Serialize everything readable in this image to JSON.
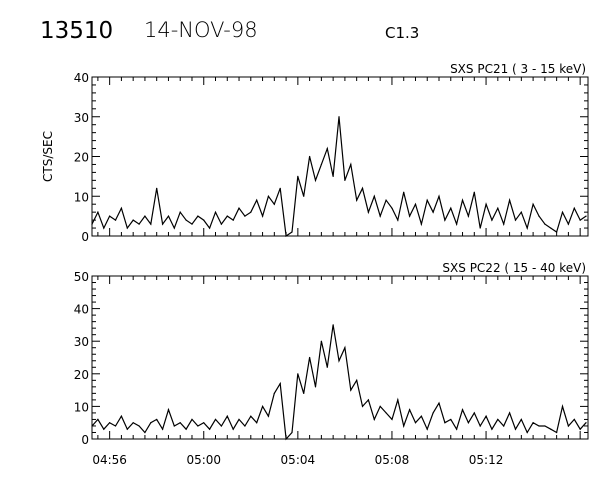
{
  "header": {
    "event_id": "13510",
    "date": "14-NOV-98",
    "goes_class": "C1.3"
  },
  "chart_data": [
    {
      "type": "line",
      "title": "SXS PC21  (  3 - 15 keV)",
      "ylabel": "CTS/SEC",
      "xlabel": "",
      "ylim": [
        0,
        40
      ],
      "yticks": [
        0,
        10,
        20,
        30,
        40
      ],
      "xlim": [
        "04:55:15",
        "05:16:20"
      ],
      "xticks": [
        "04:56",
        "05:00",
        "05:04",
        "05:08",
        "05:12"
      ],
      "show_xtick_labels": false,
      "x_start": "04:55:15",
      "x_step_seconds": 15,
      "values": [
        3,
        6,
        2,
        5,
        4,
        7,
        2,
        4,
        3,
        5,
        3,
        12,
        3,
        5,
        2,
        6,
        4,
        3,
        5,
        4,
        2,
        6,
        3,
        5,
        4,
        7,
        5,
        6,
        9,
        5,
        10,
        8,
        12,
        0,
        1,
        15,
        10,
        20,
        14,
        18,
        22,
        15,
        30,
        14,
        18,
        9,
        12,
        6,
        10,
        5,
        9,
        7,
        4,
        11,
        5,
        8,
        3,
        9,
        6,
        10,
        4,
        7,
        3,
        9,
        5,
        11,
        2,
        8,
        4,
        7,
        3,
        9,
        4,
        6,
        2,
        8,
        5,
        3,
        2,
        1,
        6,
        3,
        7,
        4,
        5
      ]
    },
    {
      "type": "line",
      "title": "SXS PC22  ( 15 - 40 keV)",
      "ylabel": "",
      "xlabel": "",
      "ylim": [
        0,
        50
      ],
      "yticks": [
        0,
        10,
        20,
        30,
        40,
        50
      ],
      "xlim": [
        "04:55:15",
        "05:16:20"
      ],
      "xticks": [
        "04:56",
        "05:00",
        "05:04",
        "05:08",
        "05:12"
      ],
      "show_xtick_labels": true,
      "x_start": "04:55:15",
      "x_step_seconds": 15,
      "values": [
        4,
        6,
        3,
        5,
        4,
        7,
        3,
        5,
        4,
        2,
        5,
        6,
        3,
        9,
        4,
        5,
        3,
        6,
        4,
        5,
        3,
        6,
        4,
        7,
        3,
        6,
        4,
        7,
        5,
        10,
        7,
        14,
        17,
        0,
        2,
        20,
        14,
        25,
        16,
        30,
        22,
        35,
        24,
        28,
        15,
        18,
        10,
        12,
        6,
        10,
        8,
        6,
        12,
        4,
        9,
        5,
        7,
        3,
        8,
        11,
        5,
        6,
        3,
        9,
        5,
        8,
        4,
        7,
        3,
        6,
        4,
        8,
        3,
        6,
        2,
        5,
        4,
        4,
        3,
        2,
        10,
        4,
        6,
        3,
        5
      ]
    }
  ]
}
